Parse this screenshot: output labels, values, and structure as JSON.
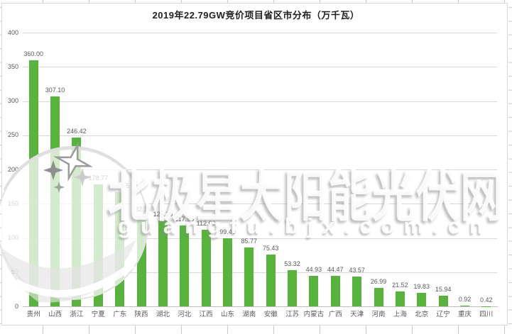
{
  "watermark": {
    "brand_text": "北极星太阳能光伏网",
    "site_text": "guangfu.bjx.com.cn"
  },
  "chart_data": {
    "type": "bar",
    "title": "2019年22.79GW竞价项目省区市分布（万千瓦）",
    "categories": [
      "贵州",
      "山西",
      "浙江",
      "宁夏",
      "广东",
      "陕西",
      "湖北",
      "河北",
      "江西",
      "山东",
      "湖南",
      "安徽",
      "江苏",
      "内蒙古",
      "广西",
      "天津",
      "河南",
      "上海",
      "北京",
      "辽宁",
      "重庆",
      "四川"
    ],
    "values": [
      360.0,
      307.1,
      246.42,
      178.77,
      166.55,
      132.28,
      125.16,
      117.98,
      112.0,
      99.4,
      85.77,
      75.43,
      53.32,
      44.93,
      44.47,
      43.57,
      26.99,
      21.52,
      19.83,
      15.94,
      0.92,
      0.42
    ],
    "value_labels": [
      "360.00",
      "307.10",
      "246.42",
      "178.77",
      "166.55",
      "132.28",
      "125.16",
      "117.98",
      "112.00",
      "99.40",
      "85.77",
      "75.43",
      "53.32",
      "44.93",
      "44.47",
      "43.57",
      "26.99",
      "21.52",
      "19.83",
      "15.94",
      "0.92",
      "0.42"
    ],
    "xlabel": "",
    "ylabel": "",
    "ylim": [
      0,
      400
    ],
    "yticks": [
      0,
      50,
      100,
      150,
      200,
      250,
      300,
      350,
      400
    ],
    "grid": true,
    "legend": false,
    "bar_color": "#57b33b"
  },
  "colors": {
    "bar": "#57b33b",
    "gridline": "#d9d9d9",
    "axis_line": "#bfbfbf",
    "tick_label": "#595959",
    "title": "#1f1f1f",
    "chart_border": "#d9d9d9",
    "sheet_grid": "#c9c9c9"
  }
}
